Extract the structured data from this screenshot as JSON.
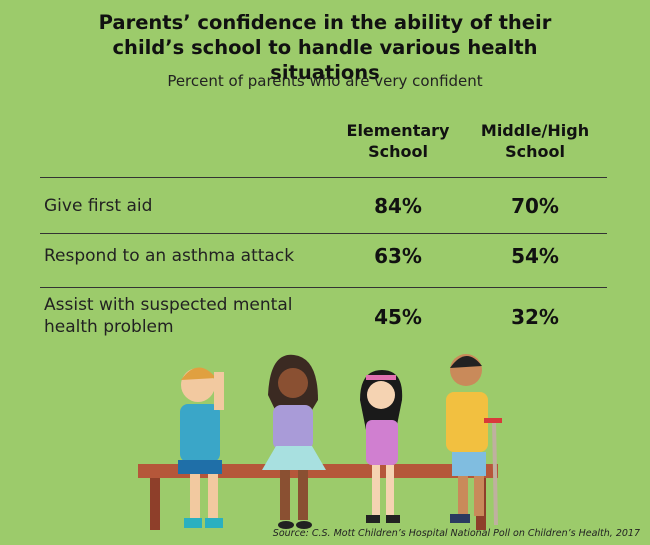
{
  "header": {
    "title": "Parents’ confidence in the ability of their child’s school to handle various health situations",
    "subtitle": "Percent of parents who are very confident"
  },
  "table": {
    "columns": [
      "Elementary School",
      "Middle/High School"
    ],
    "rows": [
      [
        "Give first aid",
        "84%",
        "70%"
      ],
      [
        "Respond to an asthma attack",
        "63%",
        "54%"
      ],
      [
        "Assist with suspected mental health problem",
        "45%",
        "32%"
      ]
    ]
  },
  "source": "Source: C.S. Mott Children’s Hospital National Poll on Children’s Health, 2017"
}
